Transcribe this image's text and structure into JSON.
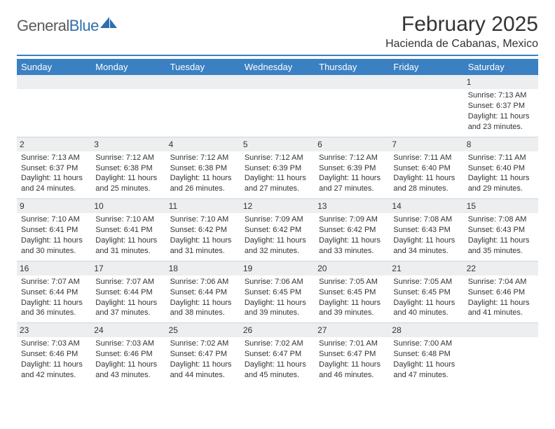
{
  "logo": {
    "text_a": "General",
    "text_b": "Blue"
  },
  "title": "February 2025",
  "location": "Hacienda de Cabanas, Mexico",
  "colors": {
    "header_bar": "#3a80c3",
    "rule": "#3a80c3",
    "day_num_bg": "#eceeef",
    "row_border": "#cfd6dc",
    "text": "#333333",
    "logo_gray": "#5a5a5a",
    "logo_blue": "#2f6fb0"
  },
  "weekdays": [
    "Sunday",
    "Monday",
    "Tuesday",
    "Wednesday",
    "Thursday",
    "Friday",
    "Saturday"
  ],
  "cells": [
    [
      {
        "empty": true
      },
      {
        "empty": true
      },
      {
        "empty": true
      },
      {
        "empty": true
      },
      {
        "empty": true
      },
      {
        "empty": true
      },
      {
        "day": "1",
        "sunrise": "Sunrise: 7:13 AM",
        "sunset": "Sunset: 6:37 PM",
        "daylight1": "Daylight: 11 hours",
        "daylight2": "and 23 minutes."
      }
    ],
    [
      {
        "day": "2",
        "sunrise": "Sunrise: 7:13 AM",
        "sunset": "Sunset: 6:37 PM",
        "daylight1": "Daylight: 11 hours",
        "daylight2": "and 24 minutes."
      },
      {
        "day": "3",
        "sunrise": "Sunrise: 7:12 AM",
        "sunset": "Sunset: 6:38 PM",
        "daylight1": "Daylight: 11 hours",
        "daylight2": "and 25 minutes."
      },
      {
        "day": "4",
        "sunrise": "Sunrise: 7:12 AM",
        "sunset": "Sunset: 6:38 PM",
        "daylight1": "Daylight: 11 hours",
        "daylight2": "and 26 minutes."
      },
      {
        "day": "5",
        "sunrise": "Sunrise: 7:12 AM",
        "sunset": "Sunset: 6:39 PM",
        "daylight1": "Daylight: 11 hours",
        "daylight2": "and 27 minutes."
      },
      {
        "day": "6",
        "sunrise": "Sunrise: 7:12 AM",
        "sunset": "Sunset: 6:39 PM",
        "daylight1": "Daylight: 11 hours",
        "daylight2": "and 27 minutes."
      },
      {
        "day": "7",
        "sunrise": "Sunrise: 7:11 AM",
        "sunset": "Sunset: 6:40 PM",
        "daylight1": "Daylight: 11 hours",
        "daylight2": "and 28 minutes."
      },
      {
        "day": "8",
        "sunrise": "Sunrise: 7:11 AM",
        "sunset": "Sunset: 6:40 PM",
        "daylight1": "Daylight: 11 hours",
        "daylight2": "and 29 minutes."
      }
    ],
    [
      {
        "day": "9",
        "sunrise": "Sunrise: 7:10 AM",
        "sunset": "Sunset: 6:41 PM",
        "daylight1": "Daylight: 11 hours",
        "daylight2": "and 30 minutes."
      },
      {
        "day": "10",
        "sunrise": "Sunrise: 7:10 AM",
        "sunset": "Sunset: 6:41 PM",
        "daylight1": "Daylight: 11 hours",
        "daylight2": "and 31 minutes."
      },
      {
        "day": "11",
        "sunrise": "Sunrise: 7:10 AM",
        "sunset": "Sunset: 6:42 PM",
        "daylight1": "Daylight: 11 hours",
        "daylight2": "and 31 minutes."
      },
      {
        "day": "12",
        "sunrise": "Sunrise: 7:09 AM",
        "sunset": "Sunset: 6:42 PM",
        "daylight1": "Daylight: 11 hours",
        "daylight2": "and 32 minutes."
      },
      {
        "day": "13",
        "sunrise": "Sunrise: 7:09 AM",
        "sunset": "Sunset: 6:42 PM",
        "daylight1": "Daylight: 11 hours",
        "daylight2": "and 33 minutes."
      },
      {
        "day": "14",
        "sunrise": "Sunrise: 7:08 AM",
        "sunset": "Sunset: 6:43 PM",
        "daylight1": "Daylight: 11 hours",
        "daylight2": "and 34 minutes."
      },
      {
        "day": "15",
        "sunrise": "Sunrise: 7:08 AM",
        "sunset": "Sunset: 6:43 PM",
        "daylight1": "Daylight: 11 hours",
        "daylight2": "and 35 minutes."
      }
    ],
    [
      {
        "day": "16",
        "sunrise": "Sunrise: 7:07 AM",
        "sunset": "Sunset: 6:44 PM",
        "daylight1": "Daylight: 11 hours",
        "daylight2": "and 36 minutes."
      },
      {
        "day": "17",
        "sunrise": "Sunrise: 7:07 AM",
        "sunset": "Sunset: 6:44 PM",
        "daylight1": "Daylight: 11 hours",
        "daylight2": "and 37 minutes."
      },
      {
        "day": "18",
        "sunrise": "Sunrise: 7:06 AM",
        "sunset": "Sunset: 6:44 PM",
        "daylight1": "Daylight: 11 hours",
        "daylight2": "and 38 minutes."
      },
      {
        "day": "19",
        "sunrise": "Sunrise: 7:06 AM",
        "sunset": "Sunset: 6:45 PM",
        "daylight1": "Daylight: 11 hours",
        "daylight2": "and 39 minutes."
      },
      {
        "day": "20",
        "sunrise": "Sunrise: 7:05 AM",
        "sunset": "Sunset: 6:45 PM",
        "daylight1": "Daylight: 11 hours",
        "daylight2": "and 39 minutes."
      },
      {
        "day": "21",
        "sunrise": "Sunrise: 7:05 AM",
        "sunset": "Sunset: 6:45 PM",
        "daylight1": "Daylight: 11 hours",
        "daylight2": "and 40 minutes."
      },
      {
        "day": "22",
        "sunrise": "Sunrise: 7:04 AM",
        "sunset": "Sunset: 6:46 PM",
        "daylight1": "Daylight: 11 hours",
        "daylight2": "and 41 minutes."
      }
    ],
    [
      {
        "day": "23",
        "sunrise": "Sunrise: 7:03 AM",
        "sunset": "Sunset: 6:46 PM",
        "daylight1": "Daylight: 11 hours",
        "daylight2": "and 42 minutes."
      },
      {
        "day": "24",
        "sunrise": "Sunrise: 7:03 AM",
        "sunset": "Sunset: 6:46 PM",
        "daylight1": "Daylight: 11 hours",
        "daylight2": "and 43 minutes."
      },
      {
        "day": "25",
        "sunrise": "Sunrise: 7:02 AM",
        "sunset": "Sunset: 6:47 PM",
        "daylight1": "Daylight: 11 hours",
        "daylight2": "and 44 minutes."
      },
      {
        "day": "26",
        "sunrise": "Sunrise: 7:02 AM",
        "sunset": "Sunset: 6:47 PM",
        "daylight1": "Daylight: 11 hours",
        "daylight2": "and 45 minutes."
      },
      {
        "day": "27",
        "sunrise": "Sunrise: 7:01 AM",
        "sunset": "Sunset: 6:47 PM",
        "daylight1": "Daylight: 11 hours",
        "daylight2": "and 46 minutes."
      },
      {
        "day": "28",
        "sunrise": "Sunrise: 7:00 AM",
        "sunset": "Sunset: 6:48 PM",
        "daylight1": "Daylight: 11 hours",
        "daylight2": "and 47 minutes."
      },
      {
        "empty": true
      }
    ]
  ]
}
